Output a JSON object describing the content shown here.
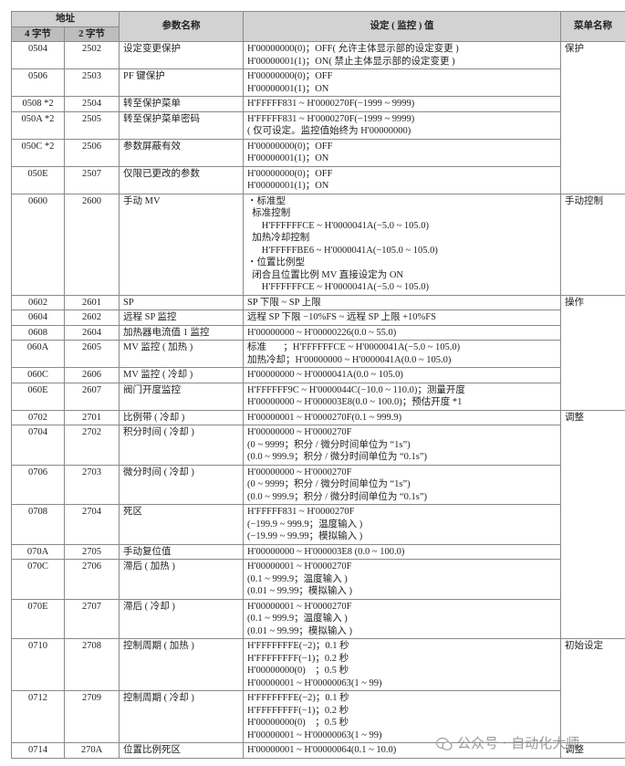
{
  "table": {
    "header": {
      "address": "地址",
      "addr4": "4 字节",
      "addr2": "2 字节",
      "name": "参数名称",
      "value": "设定 ( 监控 ) 值",
      "menu": "菜单名称"
    },
    "rows": [
      {
        "addr4": "0504",
        "addr2": "2502",
        "name": "设定变更保护",
        "value": [
          "H'00000000(0)；OFF( 允许主体显示部的设定变更 )",
          "H'00000001(1)；ON( 禁止主体显示部的设定变更 )"
        ],
        "menu": "保护"
      },
      {
        "addr4": "0506",
        "addr2": "2503",
        "name": "PF 键保护",
        "value": [
          "H'00000000(0)；OFF",
          "H'00000001(1)；ON"
        ]
      },
      {
        "addr4": "0508 *2",
        "addr2": "2504",
        "name": "转至保护菜单",
        "value": [
          "H'FFFFF831 ~ H'0000270F(−1999 ~ 9999)"
        ]
      },
      {
        "addr4": "050A *2",
        "addr2": "2505",
        "name": "转至保护菜单密码",
        "value": [
          "H'FFFFF831 ~ H'0000270F(−1999 ~ 9999)",
          "( 仅可设定。监控值始终为 H'00000000)"
        ]
      },
      {
        "addr4": "050C *2",
        "addr2": "2506",
        "name": "参数屏蔽有效",
        "value": [
          "H'00000000(0)；OFF",
          "H'00000001(1)；ON"
        ]
      },
      {
        "addr4": "050E",
        "addr2": "2507",
        "name": "仅限已更改的参数",
        "value": [
          "H'00000000(0)；OFF",
          "H'00000001(1)；ON"
        ]
      },
      {
        "addr4": "0600",
        "addr2": "2600",
        "name": "手动 MV",
        "value": [
          "・标准型",
          "  标准控制",
          "      H'FFFFFFCE ~ H'0000041A(−5.0 ~ 105.0)",
          "  加热冷却控制",
          "      H'FFFFFBE6 ~ H'0000041A(−105.0 ~ 105.0)",
          "・位置比例型",
          "  闭合且位置比例 MV 直接设定为 ON",
          "      H'FFFFFFCE ~ H'0000041A(−5.0 ~ 105.0)"
        ],
        "menu": "手动控制"
      },
      {
        "addr4": "0602",
        "addr2": "2601",
        "name": "SP",
        "value": [
          "SP 下限 ~ SP 上限"
        ],
        "menu": "操作"
      },
      {
        "addr4": "0604",
        "addr2": "2602",
        "name": "远程 SP 监控",
        "value": [
          "远程 SP 下限 −10%FS ~ 远程 SP 上限 +10%FS"
        ]
      },
      {
        "addr4": "0608",
        "addr2": "2604",
        "name": "加热器电流值 1 监控",
        "value": [
          "H'00000000 ~ H'00000226(0.0 ~ 55.0)"
        ]
      },
      {
        "addr4": "060A",
        "addr2": "2605",
        "name": "MV 监控 ( 加热 )",
        "value": [
          "标准       ；H'FFFFFFCE ~ H'0000041A(−5.0 ~ 105.0)",
          "加热冷却；H'00000000 ~ H'0000041A(0.0 ~ 105.0)"
        ]
      },
      {
        "addr4": "060C",
        "addr2": "2606",
        "name": "MV 监控 ( 冷却 )",
        "value": [
          "H'00000000 ~ H'0000041A(0.0 ~ 105.0)"
        ]
      },
      {
        "addr4": "060E",
        "addr2": "2607",
        "name": "阀门开度监控",
        "value": [
          "H'FFFFFF9C ~ H'0000044C(−10.0 ~ 110.0)；测量开度",
          "H'00000000 ~ H'000003E8(0.0 ~ 100.0)；预估开度 *1"
        ]
      },
      {
        "addr4": "0702",
        "addr2": "2701",
        "name": "比例带 ( 冷却 )",
        "value": [
          "H'00000001 ~ H'0000270F(0.1 ~ 999.9)"
        ],
        "menu": "调整"
      },
      {
        "addr4": "0704",
        "addr2": "2702",
        "name": "积分时间 ( 冷却 )",
        "value": [
          "H'00000000 ~ H'0000270F",
          "(0 ~ 9999；积分 / 微分时间单位为 “1s”)",
          "(0.0 ~ 999.9；积分 / 微分时间单位为 “0.1s”)"
        ]
      },
      {
        "addr4": "0706",
        "addr2": "2703",
        "name": "微分时间 ( 冷却 )",
        "value": [
          "H'00000000 ~ H'0000270F",
          "(0 ~ 9999；积分 / 微分时间单位为 “1s”)",
          "(0.0 ~ 999.9；积分 / 微分时间单位为 “0.1s”)"
        ]
      },
      {
        "addr4": "0708",
        "addr2": "2704",
        "name": "死区",
        "value": [
          "H'FFFFF831 ~ H'0000270F",
          "(−199.9 ~ 999.9；温度输入 )",
          "(−19.99 ~ 99.99；模拟输入 )"
        ]
      },
      {
        "addr4": "070A",
        "addr2": "2705",
        "name": "手动复位值",
        "value": [
          "H'00000000 ~ H'000003E8 (0.0 ~ 100.0)"
        ]
      },
      {
        "addr4": "070C",
        "addr2": "2706",
        "name": "滞后 ( 加热 )",
        "value": [
          "H'00000001 ~ H'0000270F",
          "(0.1 ~ 999.9；温度输入 )",
          "(0.01 ~ 99.99；模拟输入 )"
        ]
      },
      {
        "addr4": "070E",
        "addr2": "2707",
        "name": "滞后 ( 冷却 )",
        "value": [
          "H'00000001 ~ H'0000270F",
          "(0.1 ~ 999.9；温度输入 )",
          "(0.01 ~ 99.99；模拟输入 )"
        ]
      },
      {
        "addr4": "0710",
        "addr2": "2708",
        "name": "控制周期 ( 加热 )",
        "value": [
          "H'FFFFFFFE(−2)；0.1 秒",
          "H'FFFFFFFF(−1)；0.2 秒",
          "H'00000000(0)    ；0.5 秒",
          "H'00000001 ~ H'00000063(1 ~ 99)"
        ],
        "menu": "初始设定"
      },
      {
        "addr4": "0712",
        "addr2": "2709",
        "name": "控制周期 ( 冷却 )",
        "value": [
          "H'FFFFFFFE(−2)；0.1 秒",
          "H'FFFFFFFF(−1)；0.2 秒",
          "H'00000000(0)    ；0.5 秒",
          "H'00000001 ~ H'00000063(1 ~ 99)"
        ]
      },
      {
        "addr4": "0714",
        "addr2": "270A",
        "name": "位置比例死区",
        "value": [
          "H'00000001 ~ H'00000064(0.1 ~ 10.0)"
        ],
        "menu": "调整"
      }
    ]
  },
  "watermark": "公众号 · 自动化大师"
}
